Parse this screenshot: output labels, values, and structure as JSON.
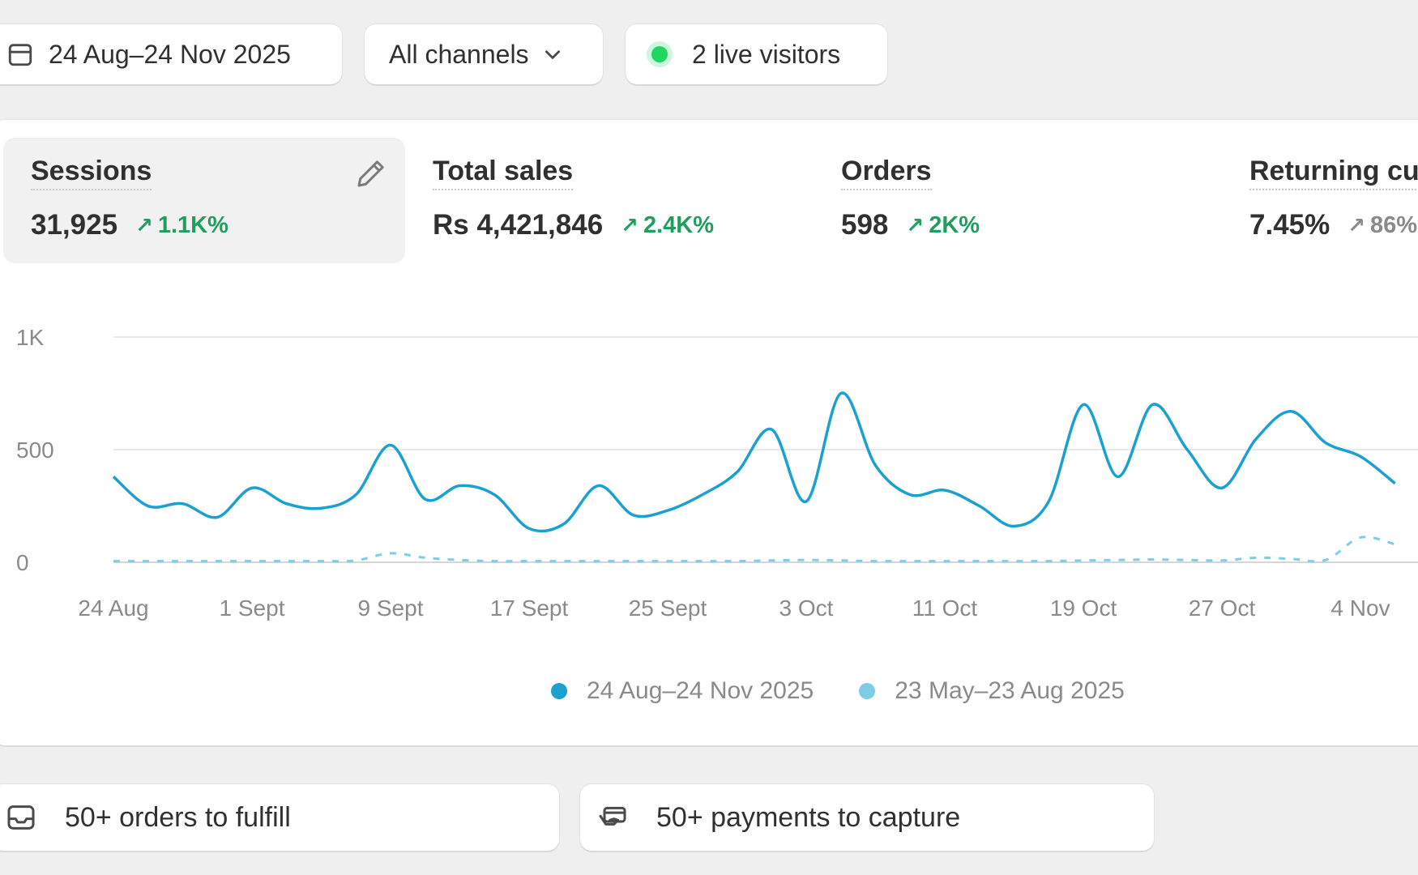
{
  "filters": {
    "date_range": "24 Aug–24 Nov 2025",
    "channels": "All channels",
    "live_visitors": "2 live visitors"
  },
  "metrics": [
    {
      "label": "Sessions",
      "value": "31,925",
      "change": "1.1K%",
      "trend": "up",
      "selected": true
    },
    {
      "label": "Total sales",
      "value": "Rs 4,421,846",
      "change": "2.4K%",
      "trend": "up"
    },
    {
      "label": "Orders",
      "value": "598",
      "change": "2K%",
      "trend": "up"
    },
    {
      "label": "Returning cu",
      "value": "7.45%",
      "change": "86%",
      "trend": "up"
    }
  ],
  "chart_data": {
    "type": "line",
    "y_ticks": [
      "0",
      "500",
      "1K"
    ],
    "ylim": [
      0,
      1000
    ],
    "x_ticks": [
      "24 Aug",
      "1 Sept",
      "9 Sept",
      "17 Sept",
      "25 Sept",
      "3 Oct",
      "11 Oct",
      "19 Oct",
      "27 Oct",
      "4 Nov"
    ],
    "x": [
      "24 Aug",
      "26 Aug",
      "28 Aug",
      "30 Aug",
      "1 Sept",
      "3 Sept",
      "5 Sept",
      "7 Sept",
      "9 Sept",
      "11 Sept",
      "13 Sept",
      "15 Sept",
      "17 Sept",
      "19 Sept",
      "21 Sept",
      "23 Sept",
      "25 Sept",
      "27 Sept",
      "29 Sept",
      "1 Oct",
      "3 Oct",
      "5 Oct",
      "7 Oct",
      "9 Oct",
      "11 Oct",
      "13 Oct",
      "15 Oct",
      "17 Oct",
      "19 Oct",
      "21 Oct",
      "23 Oct",
      "25 Oct",
      "27 Oct",
      "29 Oct",
      "31 Oct",
      "2 Nov",
      "4 Nov",
      "6 Nov"
    ],
    "series": [
      {
        "name": "24 Aug–24 Nov 2025",
        "color": "#1ba1d1",
        "style": "solid",
        "values": [
          380,
          250,
          260,
          200,
          330,
          260,
          240,
          300,
          520,
          280,
          340,
          300,
          150,
          170,
          340,
          210,
          230,
          300,
          400,
          590,
          270,
          750,
          430,
          300,
          320,
          250,
          160,
          270,
          700,
          380,
          700,
          500,
          330,
          550,
          670,
          530,
          470,
          350
        ]
      },
      {
        "name": "23 May–23 Aug 2025",
        "color": "#7ecde6",
        "style": "dashed",
        "values": [
          5,
          5,
          5,
          5,
          5,
          5,
          5,
          8,
          40,
          20,
          10,
          5,
          5,
          5,
          5,
          5,
          5,
          5,
          5,
          8,
          10,
          8,
          5,
          5,
          5,
          5,
          5,
          5,
          8,
          10,
          12,
          10,
          8,
          20,
          15,
          10,
          110,
          80
        ]
      }
    ],
    "legend_position": "bottom-center",
    "grid": true
  },
  "tasks": [
    {
      "label": "50+ orders to fulfill",
      "icon": "inbox-icon"
    },
    {
      "label": "50+ payments to capture",
      "icon": "payment-icon"
    }
  ]
}
